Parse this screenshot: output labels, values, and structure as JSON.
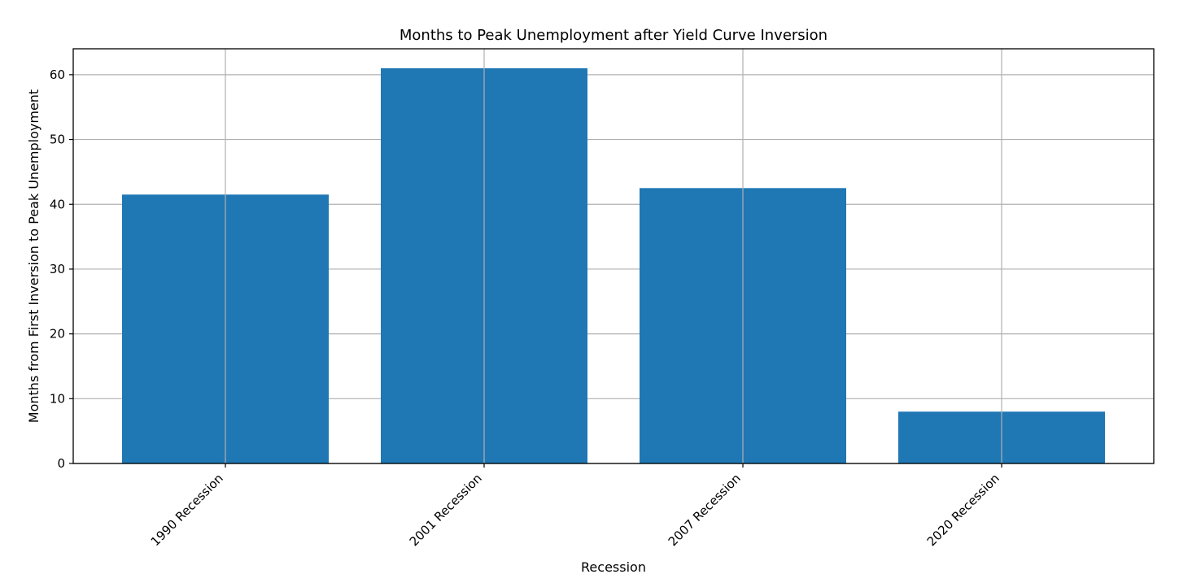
{
  "chart_data": {
    "type": "bar",
    "title": "Months to Peak Unemployment after Yield Curve Inversion",
    "xlabel": "Recession",
    "ylabel": "Months from First Inversion to Peak Unemployment",
    "categories": [
      "1990 Recession",
      "2001 Recession",
      "2007 Recession",
      "2020 Recession"
    ],
    "values": [
      41.5,
      61,
      42.5,
      8
    ],
    "ylim": [
      0,
      64
    ],
    "yticks": [
      0,
      10,
      20,
      30,
      40,
      50,
      60
    ],
    "grid": true,
    "bar_color": "#1f77b4",
    "grid_color": "#b0b0b0"
  }
}
